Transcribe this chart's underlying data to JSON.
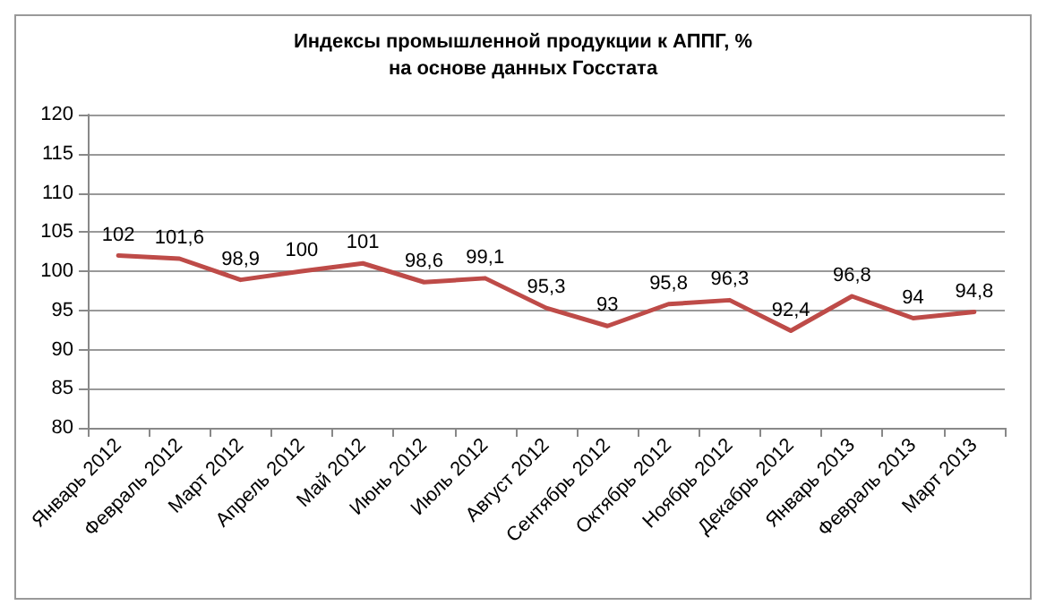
{
  "chart_data": {
    "type": "line",
    "title": "Индексы промышленной продукции к АППГ, %",
    "subtitle": "на основе данных Госстата",
    "categories": [
      "Январь 2012",
      "Февраль 2012",
      "Март 2012",
      "Апрель 2012",
      "Май 2012",
      "Июнь 2012",
      "Июль 2012",
      "Август 2012",
      "Сентябрь 2012",
      "Октябрь 2012",
      "Ноябрь 2012",
      "Декабрь 2012",
      "Январь 2013",
      "Февраль 2013",
      "Март 2013"
    ],
    "series": [
      {
        "color": "#be4b48",
        "values": [
          102,
          101.6,
          98.9,
          100,
          101,
          98.6,
          99.1,
          95.3,
          93,
          95.8,
          96.3,
          92.4,
          96.8,
          94,
          94.8
        ],
        "value_labels": [
          "102",
          "101,6",
          "98,9",
          "100",
          "101",
          "98,6",
          "99,1",
          "95,3",
          "93",
          "95,8",
          "96,3",
          "92,4",
          "96,8",
          "94",
          "94,8"
        ]
      }
    ],
    "ylim": [
      80,
      120
    ],
    "yticks": [
      80,
      85,
      90,
      95,
      100,
      105,
      110,
      115,
      120
    ],
    "grid": "y",
    "marker": "none",
    "line_style": "solid"
  }
}
